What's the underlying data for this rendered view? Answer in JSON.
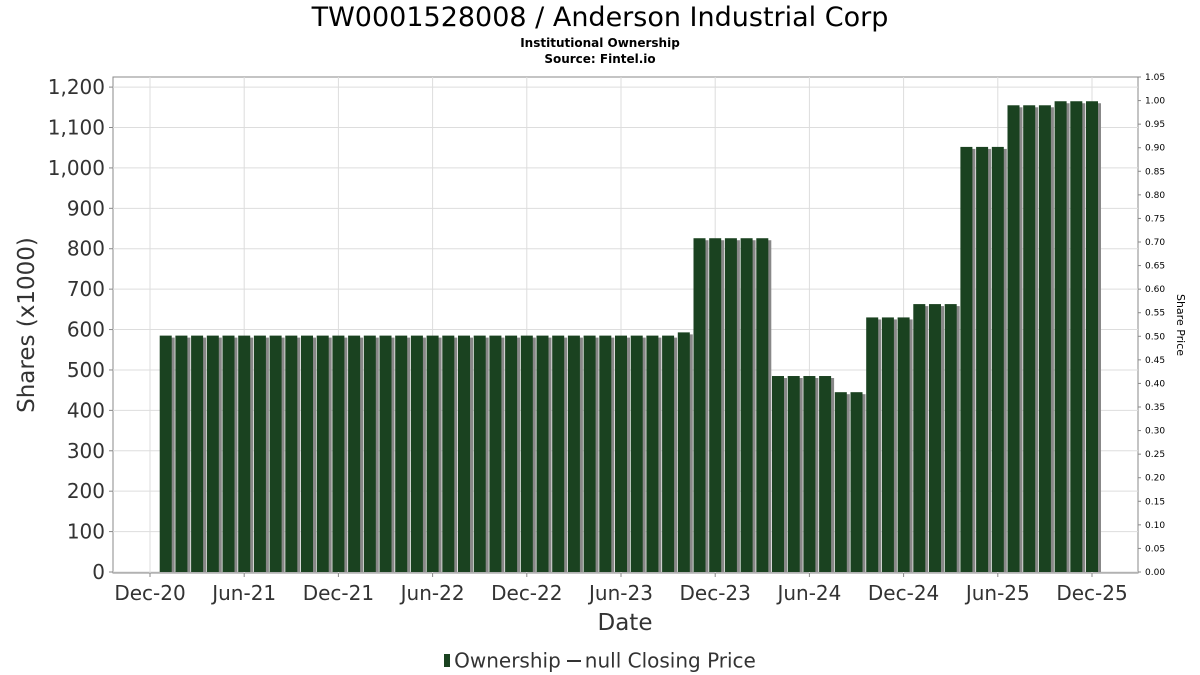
{
  "chart_data": {
    "type": "bar",
    "title": "TW0001528008 / Anderson Industrial Corp",
    "subtitle": "Institutional Ownership",
    "source": "Source: Fintel.io",
    "xlabel": "Date",
    "ylabel": "Shares (x1000)",
    "y2label": "Share Price",
    "ylim": [
      0,
      1225
    ],
    "y2lim": [
      0,
      1.05
    ],
    "yticks": [
      "0",
      "100",
      "200",
      "300",
      "400",
      "500",
      "600",
      "700",
      "800",
      "900",
      "1,000",
      "1,100",
      "1,200"
    ],
    "y2ticks": [
      "0.00",
      "0.05",
      "0.10",
      "0.15",
      "0.20",
      "0.25",
      "0.30",
      "0.35",
      "0.40",
      "0.45",
      "0.50",
      "0.55",
      "0.60",
      "0.65",
      "0.70",
      "0.75",
      "0.80",
      "0.85",
      "0.90",
      "0.95",
      "1.00",
      "1.05"
    ],
    "xticks": [
      "Dec-20",
      "Jun-21",
      "Dec-21",
      "Jun-22",
      "Dec-22",
      "Jun-23",
      "Dec-23",
      "Jun-24",
      "Dec-24",
      "Jun-25",
      "Dec-25"
    ],
    "grid": true,
    "legend_position": "bottom",
    "series": [
      {
        "name": "Ownership",
        "color": "#1a4220",
        "start_month": "Jan-21",
        "values": [
          585,
          585,
          585,
          585,
          585,
          585,
          585,
          585,
          585,
          585,
          585,
          585,
          585,
          585,
          585,
          585,
          585,
          585,
          585,
          585,
          585,
          585,
          585,
          585,
          585,
          585,
          585,
          585,
          585,
          585,
          585,
          585,
          585,
          593,
          826,
          826,
          826,
          826,
          826,
          485,
          485,
          485,
          485,
          445,
          445,
          630,
          630,
          630,
          663,
          663,
          663,
          1052,
          1052,
          1052,
          1155,
          1155,
          1155,
          1165,
          1165,
          1165
        ]
      },
      {
        "name": "null Closing Price",
        "color": "#333333",
        "values": []
      }
    ]
  }
}
